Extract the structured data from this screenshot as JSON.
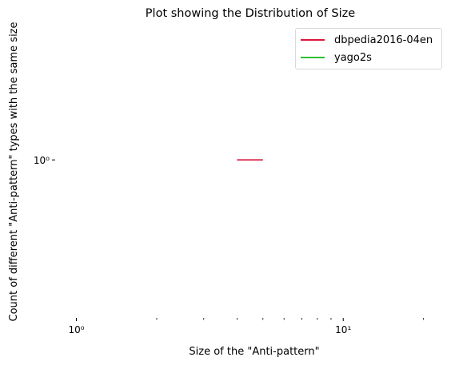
{
  "chart_data": {
    "type": "line",
    "title": "Plot showing the Distribution of Size",
    "xlabel": "Size of the \"Anti-pattern\"",
    "ylabel": "Count of different \"Anti-pattern\" types with the same size",
    "x_scale": "log",
    "y_scale": "log",
    "xlim": [
      0.85,
      25
    ],
    "ylim": [
      0.4,
      2.2
    ],
    "x_major_tick_labels": [
      {
        "value": 1,
        "label": "10⁰"
      },
      {
        "value": 10,
        "label": "10¹"
      }
    ],
    "x_minor_ticks": [
      2,
      3,
      4,
      5,
      6,
      7,
      8,
      9,
      20
    ],
    "y_major_tick_labels": [
      {
        "value": 1,
        "label": "10⁰"
      }
    ],
    "grid": false,
    "legend_position": "top-right",
    "series": [
      {
        "name": "dbpedia2016-04en",
        "color": "#dc143c",
        "x": [
          4,
          5
        ],
        "y": [
          1,
          1
        ]
      },
      {
        "name": "yago2s",
        "color": "#2ebf2e",
        "x": [],
        "y": []
      }
    ]
  }
}
